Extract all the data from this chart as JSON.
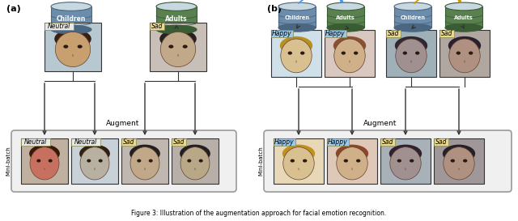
{
  "panel_a_label": "(a)",
  "panel_b_label": "(b)",
  "children_label": "Children",
  "adults_label": "Adults",
  "augment_label": "Augment",
  "minibatch_label": "Mini-batch",
  "barrel_children_color": "#6b8caa",
  "barrel_children_dark": "#4a6680",
  "barrel_adults_color": "#5a8050",
  "barrel_adults_dark": "#3a5c34",
  "barrel_text_color": "#ffffff",
  "bg_color": "#ffffff",
  "arrow_color_blue": "#4499ee",
  "arrow_color_gold": "#cc9900",
  "neutral_label_bg": "#e8e0c8",
  "sad_label_bg": "#e8d890",
  "happy_label_bg": "#9ec8e8",
  "caption": "Figure 3: Illustration of the augmentation approach.",
  "face_a_child_neutral": [
    "#c8a070",
    "#a06840",
    "#d4a878"
  ],
  "face_a_adult_sad": [
    "#c0a888",
    "#906040",
    "#c8b090"
  ],
  "face_b1_child_happy": [
    "#e0c898",
    "#c8a060",
    "#f0d8a8"
  ],
  "face_b1_adult_happy": [
    "#d4b090",
    "#b07850",
    "#e0c0a0"
  ],
  "face_b2_child_sad": [
    "#a09090",
    "#705060",
    "#b0a0a0"
  ],
  "face_b2_adult_sad": [
    "#b09080",
    "#806050",
    "#c0a890"
  ]
}
